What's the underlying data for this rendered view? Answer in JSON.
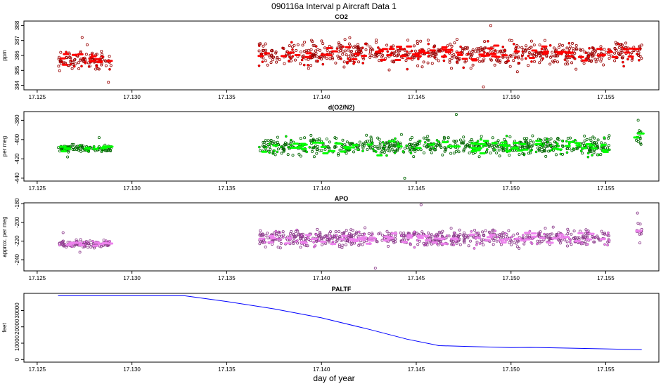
{
  "figure": {
    "title": "090116a   Interval p Aircraft Data 1",
    "xlabel": "day of year"
  },
  "chart_data": [
    {
      "type": "scatter",
      "title": "CO2",
      "ylabel": "ppm",
      "color": "#ff0000",
      "edge_color": "#990000",
      "xlim": [
        17.1243,
        17.1578
      ],
      "ylim": [
        383.7,
        388.3
      ],
      "xticks": [
        17.125,
        17.13,
        17.135,
        17.14,
        17.145,
        17.15,
        17.155
      ],
      "xtick_labels": [
        "17.125",
        "17.130",
        "17.135",
        "17.140",
        "17.145",
        "17.150",
        "17.155"
      ],
      "yticks": [
        384,
        385,
        386,
        387,
        388
      ],
      "ytick_labels": [
        "384",
        "385",
        "386",
        "387",
        "388"
      ],
      "segments": [
        {
          "x_start": 17.1261,
          "x_end": 17.1289,
          "center": 385.7,
          "spread": 0.85,
          "outlier_low": 384.2,
          "outlier_high": 387.2
        },
        {
          "x_start": 17.1367,
          "x_end": 17.1569,
          "center": 386.1,
          "spread": 1.0,
          "outlier_low": 383.9,
          "outlier_high": 388.0
        }
      ]
    },
    {
      "type": "scatter",
      "title": "d(O2/N2)",
      "ylabel": "per meg",
      "color": "#00ff00",
      "edge_color": "#006600",
      "xlim": [
        17.1243,
        17.1578
      ],
      "ylim": [
        -443,
        -371
      ],
      "xticks": [
        17.125,
        17.13,
        17.135,
        17.14,
        17.145,
        17.15,
        17.155
      ],
      "xtick_labels": [
        "17.125",
        "17.130",
        "17.135",
        "17.140",
        "17.145",
        "17.150",
        "17.155"
      ],
      "yticks": [
        -440,
        -420,
        -400,
        -380
      ],
      "ytick_labels": [
        "-440",
        "-420",
        "-400",
        "-380"
      ],
      "segments": [
        {
          "x_start": 17.1261,
          "x_end": 17.1289,
          "center": -409,
          "spread": 4.5,
          "outlier_low": -418,
          "outlier_high": -398
        },
        {
          "x_start": 17.1367,
          "x_end": 17.1552,
          "center": -407,
          "spread": 12,
          "outlier_low": -440,
          "outlier_high": -374
        },
        {
          "x_start": 17.1566,
          "x_end": 17.1569,
          "center": -396,
          "spread": 10,
          "outlier_low": -405,
          "outlier_high": -380
        }
      ]
    },
    {
      "type": "scatter",
      "title": "APO",
      "ylabel": "approx. per meg",
      "color": "#ee82ee",
      "edge_color": "#8b3a8b",
      "xlim": [
        17.1243,
        17.1578
      ],
      "ylim": [
        -252,
        -179
      ],
      "xticks": [
        17.125,
        17.13,
        17.135,
        17.14,
        17.145,
        17.15,
        17.155
      ],
      "xtick_labels": [
        "17.125",
        "17.130",
        "17.135",
        "17.140",
        "17.145",
        "17.150",
        "17.155"
      ],
      "yticks": [
        -240,
        -220,
        -200,
        -180
      ],
      "ytick_labels": [
        "-240",
        "-220",
        "-200",
        "-180"
      ],
      "segments": [
        {
          "x_start": 17.1261,
          "x_end": 17.1289,
          "center": -223,
          "spread": 5,
          "outlier_low": -232,
          "outlier_high": -211
        },
        {
          "x_start": 17.1367,
          "x_end": 17.1552,
          "center": -217,
          "spread": 11,
          "outlier_low": -249,
          "outlier_high": -181
        },
        {
          "x_start": 17.1566,
          "x_end": 17.1569,
          "center": -210,
          "spread": 9,
          "outlier_low": -222,
          "outlier_high": -190
        }
      ]
    },
    {
      "type": "line",
      "title": "PALTF",
      "ylabel": "feet",
      "color": "#0000ff",
      "xlim": [
        17.1243,
        17.1578
      ],
      "ylim": [
        -1600,
        40500
      ],
      "xticks": [
        17.125,
        17.13,
        17.135,
        17.14,
        17.145,
        17.15,
        17.155
      ],
      "xtick_labels": [
        "17.125",
        "17.130",
        "17.135",
        "17.140",
        "17.145",
        "17.150",
        "17.155"
      ],
      "yticks": [
        0,
        10000,
        20000,
        30000
      ],
      "ytick_labels": [
        "0",
        "10000",
        "20000",
        "30000"
      ],
      "x": [
        17.1261,
        17.1328,
        17.135,
        17.1375,
        17.14,
        17.1425,
        17.1445,
        17.1462,
        17.148,
        17.15,
        17.151,
        17.153,
        17.155,
        17.156,
        17.1569
      ],
      "y": [
        39000,
        39000,
        35500,
        31000,
        25500,
        18500,
        12500,
        8500,
        7900,
        7300,
        7400,
        7000,
        6500,
        6200,
        6000
      ]
    }
  ]
}
